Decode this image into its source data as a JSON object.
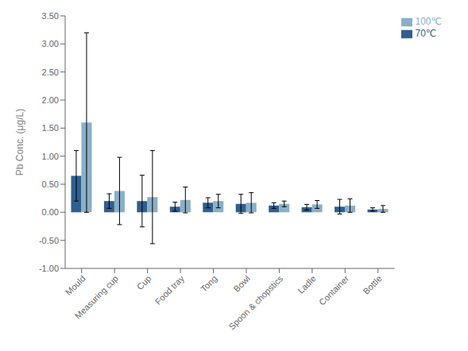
{
  "chart_data": {
    "type": "bar",
    "categories": [
      "Mould",
      "Measuring cup",
      "Cup",
      "Food tray",
      "Tong",
      "Bowl",
      "Spoon & chopstics",
      "Ladle",
      "Container",
      "Bottle"
    ],
    "series": [
      {
        "name": "70℃",
        "color": "#2F5F8F",
        "values": [
          0.65,
          0.2,
          0.2,
          0.1,
          0.17,
          0.15,
          0.12,
          0.09,
          0.1,
          0.05
        ],
        "errors": [
          0.45,
          0.13,
          0.46,
          0.08,
          0.09,
          0.17,
          0.05,
          0.05,
          0.13,
          0.03
        ]
      },
      {
        "name": "100℃",
        "color": "#8AAFC8",
        "values": [
          1.6,
          0.38,
          0.27,
          0.22,
          0.2,
          0.17,
          0.15,
          0.14,
          0.12,
          0.06
        ],
        "errors": [
          1.6,
          0.6,
          0.83,
          0.23,
          0.12,
          0.18,
          0.05,
          0.07,
          0.12,
          0.06
        ]
      }
    ],
    "ylabel": "Pb Conc. (μg/L)",
    "ylim": [
      -1.0,
      3.5
    ],
    "yticks": [
      {
        "value": -1.0,
        "label": "-1.00"
      },
      {
        "value": -0.5,
        "label": "-0.50"
      },
      {
        "value": 0,
        "label": "0.00"
      },
      {
        "value": 0.5,
        "label": "0.50"
      },
      {
        "value": 1.0,
        "label": "1.00"
      },
      {
        "value": 1.5,
        "label": "1.50"
      },
      {
        "value": 2.0,
        "label": "2.00"
      },
      {
        "value": 2.5,
        "label": "2.50"
      },
      {
        "value": 3.0,
        "label": "3.00"
      },
      {
        "value": 3.5,
        "label": "3.50"
      }
    ],
    "grid": false,
    "legend": "upper right"
  }
}
